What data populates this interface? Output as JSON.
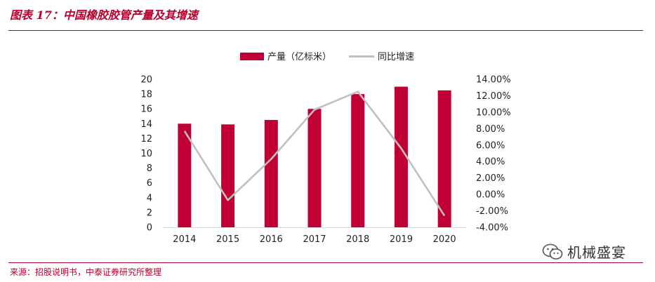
{
  "figure": {
    "title": "图表 17：中国橡胶胶管产量及其增速",
    "source": "来源：招股说明书，中泰证券研究所整理"
  },
  "watermark": {
    "text": "机械盛宴",
    "icon": "wechat-icon"
  },
  "colors": {
    "accent": "#b8002e",
    "bar": "#c00034",
    "line": "#c0c0c0"
  },
  "chart_data": {
    "type": "bar",
    "categories": [
      "2014",
      "2015",
      "2016",
      "2017",
      "2018",
      "2019",
      "2020"
    ],
    "series": [
      {
        "name": "产量（亿标米）",
        "type": "bar",
        "axis": "left",
        "values": [
          14.0,
          13.9,
          14.5,
          16.0,
          18.0,
          19.0,
          18.5
        ]
      },
      {
        "name": "同比增速",
        "type": "line",
        "axis": "right",
        "values": [
          7.7,
          -0.7,
          4.3,
          10.3,
          12.5,
          5.6,
          -2.6
        ]
      }
    ],
    "left_axis": {
      "min": 0,
      "max": 20,
      "step": 2,
      "tick_labels": [
        "0",
        "2",
        "4",
        "6",
        "8",
        "10",
        "12",
        "14",
        "16",
        "18",
        "20"
      ]
    },
    "right_axis": {
      "min": -4,
      "max": 14,
      "step": 2,
      "tick_labels": [
        "-4.00%",
        "-2.00%",
        "0.00%",
        "2.00%",
        "4.00%",
        "6.00%",
        "8.00%",
        "10.00%",
        "12.00%",
        "14.00%"
      ]
    },
    "legend_position": "top-center",
    "grid": false
  }
}
